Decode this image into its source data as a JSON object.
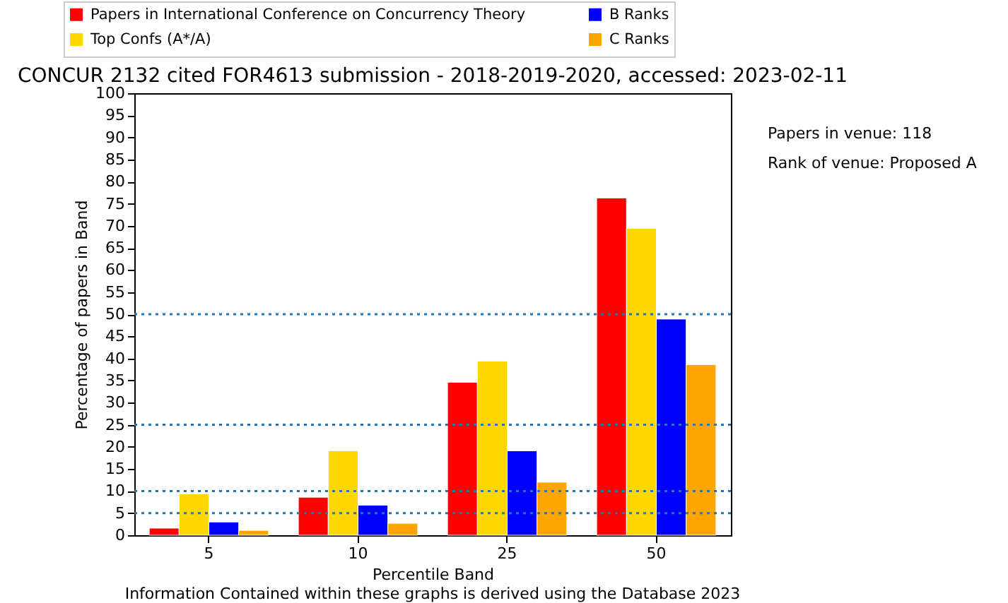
{
  "chart_data": {
    "type": "bar",
    "title": "CONCUR 2132 cited FOR4613 submission - 2018-2019-2020, accessed: 2023-02-11",
    "xlabel": "Percentile Band",
    "ylabel": "Percentage of papers in Band",
    "categories": [
      "5",
      "10",
      "25",
      "50"
    ],
    "series": [
      {
        "name": "Papers in International Conference on Concurrency Theory",
        "color": "#ff0000",
        "values": [
          1.6,
          8.6,
          34.6,
          76.3
        ]
      },
      {
        "name": "Top Confs (A*/A)",
        "color": "#ffd700",
        "values": [
          9.4,
          19.1,
          39.4,
          69.4
        ]
      },
      {
        "name": "B Ranks",
        "color": "#0000ff",
        "values": [
          3.0,
          6.8,
          19.1,
          48.9
        ]
      },
      {
        "name": "C Ranks",
        "color": "#ffa500",
        "values": [
          1.1,
          2.7,
          12.0,
          38.6
        ]
      }
    ],
    "ylim": [
      0,
      100
    ],
    "yticks": [
      0,
      5,
      10,
      15,
      20,
      25,
      30,
      35,
      40,
      45,
      50,
      55,
      60,
      65,
      70,
      75,
      80,
      85,
      90,
      95,
      100
    ],
    "ref_lines": [
      {
        "axis": "y",
        "value": 5,
        "color": "#1f77b4",
        "line_style": "dotted"
      },
      {
        "axis": "y",
        "value": 10,
        "color": "#1f77b4",
        "line_style": "dotted"
      },
      {
        "axis": "y",
        "value": 25,
        "color": "#1f77b4",
        "line_style": "dotted"
      },
      {
        "axis": "y",
        "value": 50,
        "color": "#1f77b4",
        "line_style": "dotted"
      }
    ],
    "annotations": [
      "Papers in venue: 118",
      "Rank of venue: Proposed A",
      "Information Contained within these graphs is derived using the Database 2023"
    ],
    "grid": false,
    "legend": "top"
  }
}
